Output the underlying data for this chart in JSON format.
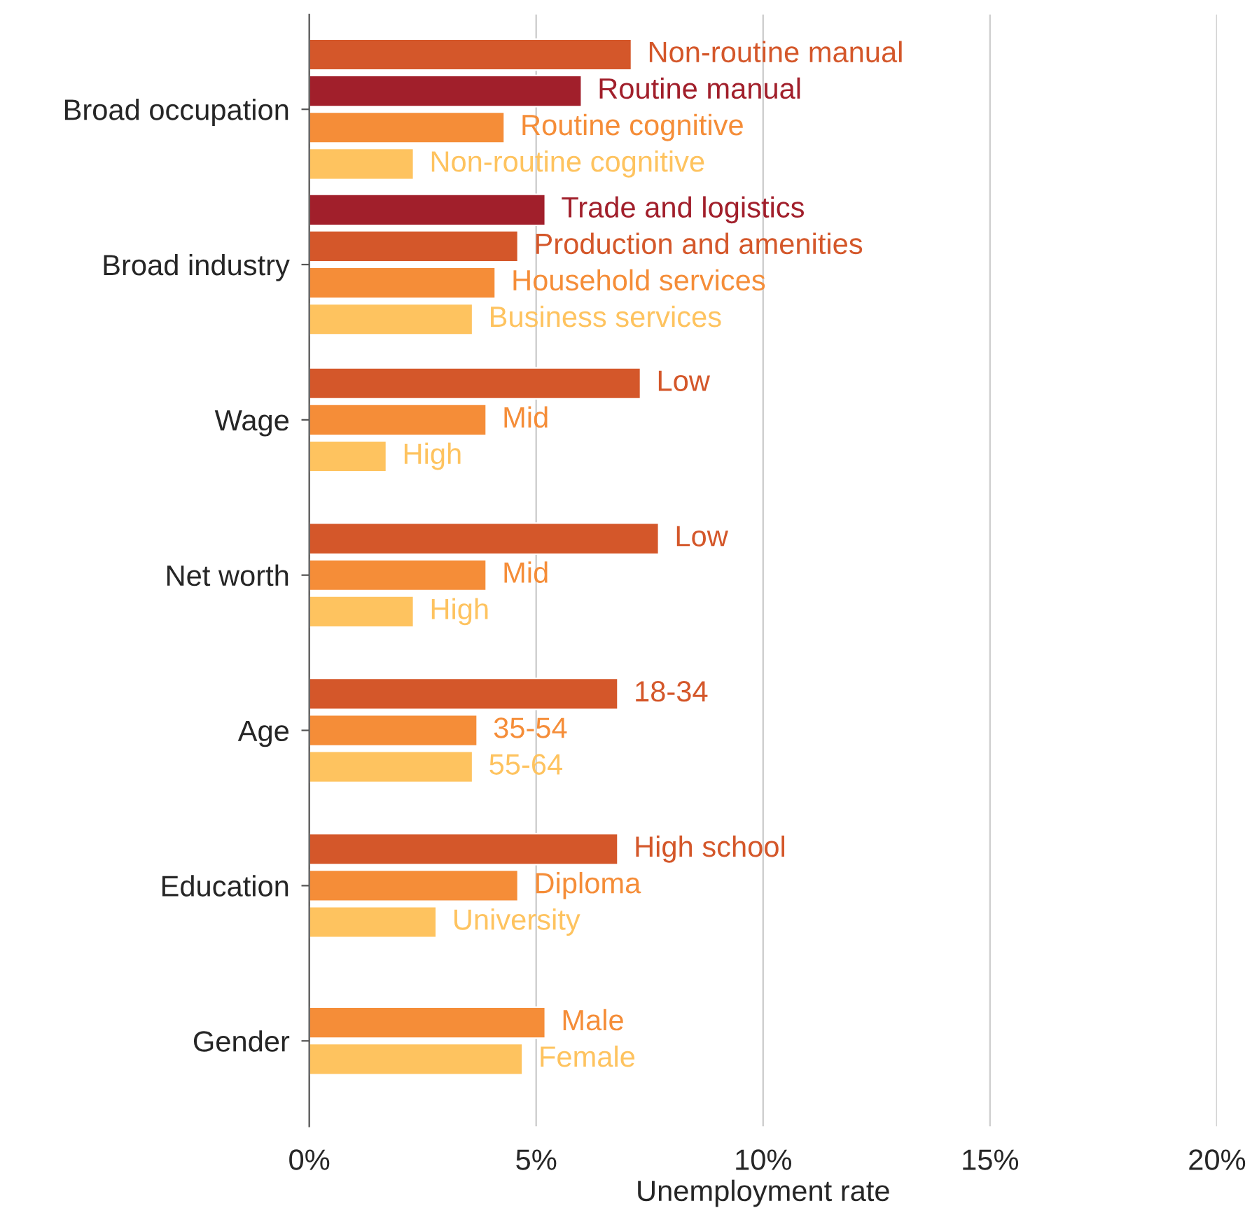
{
  "chart_data": {
    "type": "bar",
    "orientation": "horizontal",
    "xlabel": "Unemployment rate",
    "categories": [
      "Broad occupation",
      "Broad industry",
      "Wage",
      "Net worth",
      "Age",
      "Education",
      "Gender"
    ],
    "series": [
      {
        "values": [
          7.1,
          5.2,
          7.3,
          7.7,
          6.8,
          6.8,
          5.2
        ],
        "colors": [
          "#d4572a",
          "#a11f2b",
          "#d4572a",
          "#d4572a",
          "#d4572a",
          "#d4572a",
          "#f58d38"
        ]
      },
      {
        "values": [
          6.0,
          4.6,
          3.9,
          3.9,
          3.7,
          4.6,
          4.7
        ],
        "colors": [
          "#a11f2b",
          "#d4572a",
          "#f58d38",
          "#f58d38",
          "#f58d38",
          "#f58d38",
          "#fec35f"
        ]
      },
      {
        "values": [
          4.3,
          4.1,
          1.7,
          2.3,
          3.6,
          2.8,
          null
        ],
        "colors": [
          "#f58d38",
          "#f58d38",
          "#fec35f",
          "#fec35f",
          "#fec35f",
          "#fec35f",
          null
        ]
      },
      {
        "values": [
          2.3,
          3.6,
          null,
          null,
          null,
          null,
          null
        ],
        "colors": [
          "#fec35f",
          "#fec35f",
          null,
          null,
          null,
          null,
          null
        ]
      }
    ],
    "annotations": [
      "Non-routine manual",
      "Routine manual",
      "Routine cognitive",
      "Non-routine cognitive",
      "Trade and logistics",
      "Production and amenities",
      "Household services",
      "Business services",
      "Low",
      "Mid",
      "High",
      "Low",
      "Mid",
      "High",
      "18-34",
      "35-54",
      "55-64",
      "High school",
      "Diploma",
      "University",
      "Male",
      "Female"
    ],
    "xlim": [
      0,
      20
    ],
    "xticks": [
      {
        "value": 0,
        "label": "0%"
      },
      {
        "value": 5,
        "label": "5%"
      },
      {
        "value": 10,
        "label": "10%"
      },
      {
        "value": 15,
        "label": "15%"
      },
      {
        "value": 20,
        "label": "20%"
      }
    ],
    "grid": "x",
    "legend": false
  }
}
